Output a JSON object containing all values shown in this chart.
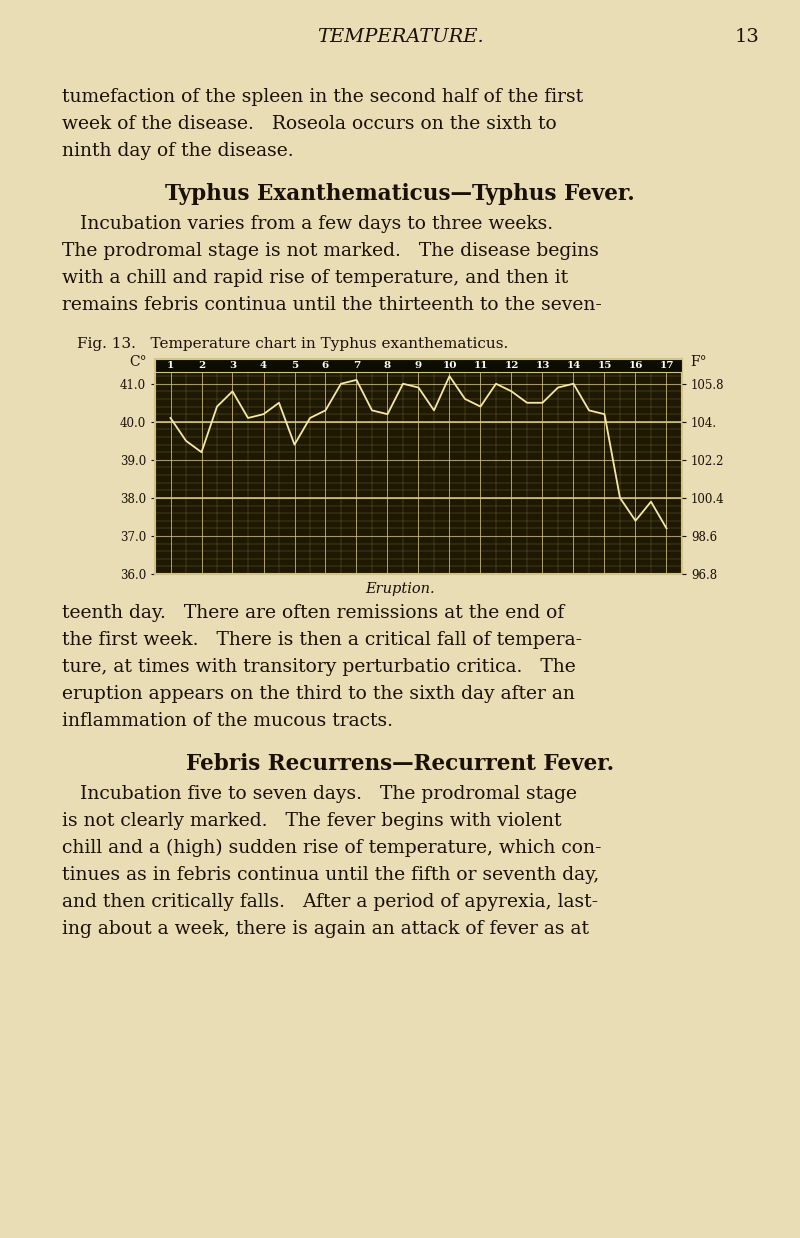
{
  "page_title": "TEMPERATURE.",
  "page_number": "13",
  "fig_caption": "Fig. 13.   Temperature chart in Typhus exanthematicus.",
  "eruption_label": "Eruption.",
  "y_left_ticks": [
    36.0,
    37.0,
    38.0,
    39.0,
    40.0,
    41.0
  ],
  "y_right_ticks": [
    96.8,
    98.6,
    100.4,
    102.2,
    104.0,
    105.8
  ],
  "y_right_labels": [
    "96.8",
    "98.6",
    "100.4",
    "102.2",
    "104.",
    "105.8"
  ],
  "chart_bg": "#1e1800",
  "grid_color_major": "#d4c484",
  "grid_color_minor": "#8a7a40",
  "line_color": "#f5e8a0",
  "page_bg": "#e8ddb5",
  "text_color": "#1a1008",
  "temp_days": [
    1,
    1.5,
    2,
    2.5,
    3,
    3.5,
    4,
    4.5,
    5,
    5.5,
    6,
    6.5,
    7,
    7.5,
    8,
    8.5,
    9,
    9.5,
    10,
    10.5,
    11,
    11.5,
    12,
    12.5,
    13,
    13.5,
    14,
    14.5,
    15,
    15.5,
    16,
    16.5,
    17
  ],
  "temp_vals": [
    40.1,
    39.5,
    39.2,
    40.4,
    40.8,
    40.1,
    40.2,
    40.5,
    39.4,
    40.1,
    40.3,
    41.0,
    41.1,
    40.3,
    40.2,
    41.0,
    40.9,
    40.3,
    41.2,
    40.6,
    40.4,
    41.0,
    40.8,
    40.5,
    40.5,
    40.9,
    41.0,
    40.3,
    40.2,
    38.0,
    37.4,
    37.9,
    37.2
  ],
  "body_text": [
    "tumefaction of the spleen in the second half of the first",
    "week of the disease.   Roseola occurs on the sixth to",
    "ninth day of the disease."
  ],
  "heading1": "Typhus Exanthematicus—Typhus Fever.",
  "para1": [
    "   Incubation varies from a few days to three weeks.",
    "The prodromal stage is not marked.   The disease begins",
    "with a chill and rapid rise of temperature, and then it",
    "remains febris continua until the thirteenth to the seven-"
  ],
  "para2": [
    "teenth day.   There are often remissions at the end of",
    "the first week.   There is then a critical fall of tempera-",
    "ture, at times with transitory perturbatio critica.   The",
    "eruption appears on the third to the sixth day after an",
    "inflammation of the mucous tracts."
  ],
  "heading2": "Febris Recurrens—Recurrent Fever.",
  "para3": [
    "   Incubation five to seven days.   The prodromal stage",
    "is not clearly marked.   The fever begins with violent",
    "chill and a (high) sudden rise of temperature, which con-",
    "tinues as in febris continua until the fifth or seventh day,",
    "and then critically falls.   After a period of apyrexia, last-",
    "ing about a week, there is again an attack of fever as at"
  ]
}
